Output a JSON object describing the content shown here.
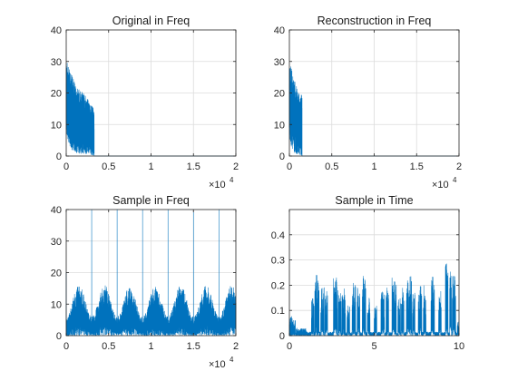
{
  "figure": {
    "background": "#ffffff",
    "line_color": "#0072BD"
  },
  "chart_data": [
    {
      "type": "line",
      "title": "Original in Freq",
      "xlabel": "",
      "ylabel": "",
      "xlim": [
        0,
        20000
      ],
      "ylim": [
        0,
        40
      ],
      "xticks": [
        0,
        5000,
        10000,
        15000,
        20000
      ],
      "xtick_labels": [
        "0",
        "0.5",
        "1",
        "1.5",
        "2"
      ],
      "yticks": [
        0,
        10,
        20,
        30,
        40
      ],
      "ytick_labels": [
        "0",
        "10",
        "20",
        "30",
        "40"
      ],
      "x_exponent": {
        "base": "×10",
        "power": "4"
      },
      "grid": true,
      "signal": {
        "description": "dense spectrum magnitude occupying low frequencies, zero above cutoff",
        "x_end": 3300,
        "envelope_x": [
          0,
          200,
          600,
          1200,
          2000,
          2800,
          3300
        ],
        "envelope_max": [
          31,
          29,
          26,
          22,
          20,
          17,
          15
        ],
        "envelope_min": [
          8,
          5,
          2,
          1,
          0.5,
          0.3,
          0
        ],
        "points": 900,
        "seed": 11
      }
    },
    {
      "type": "line",
      "title": "Reconstruction in Freq",
      "xlabel": "",
      "ylabel": "",
      "xlim": [
        0,
        20000
      ],
      "ylim": [
        0,
        40
      ],
      "xticks": [
        0,
        5000,
        10000,
        15000,
        20000
      ],
      "xtick_labels": [
        "0",
        "0.5",
        "1",
        "1.5",
        "2"
      ],
      "yticks": [
        0,
        10,
        20,
        30,
        40
      ],
      "ytick_labels": [
        "0",
        "10",
        "20",
        "30",
        "40"
      ],
      "x_exponent": {
        "base": "×10",
        "power": "4"
      },
      "grid": true,
      "signal": {
        "description": "dense spectrum magnitude limited to lower band",
        "x_end": 1500,
        "envelope_x": [
          0,
          200,
          600,
          1000,
          1500
        ],
        "envelope_max": [
          31,
          28,
          24,
          21,
          20
        ],
        "envelope_min": [
          6,
          3,
          1,
          0.5,
          0
        ],
        "points": 420,
        "seed": 23
      }
    },
    {
      "type": "line",
      "title": "Sample in Freq",
      "xlabel": "",
      "ylabel": "",
      "xlim": [
        0,
        20000
      ],
      "ylim": [
        0,
        40
      ],
      "xticks": [
        0,
        5000,
        10000,
        15000,
        20000
      ],
      "xtick_labels": [
        "0",
        "0.5",
        "1",
        "1.5",
        "2"
      ],
      "yticks": [
        0,
        10,
        20,
        30,
        40
      ],
      "ytick_labels": [
        "0",
        "10",
        "20",
        "30",
        "40"
      ],
      "x_exponent": {
        "base": "×10",
        "power": "4"
      },
      "grid": true,
      "signal": {
        "description": "periodic spectral images with spikes at multiples of sampling rate",
        "period": 3000,
        "spike_x": [
          3000,
          6000,
          9000,
          12000,
          15000,
          18000
        ],
        "spike_height": 40,
        "hump_peak": 16,
        "hump_base": 6,
        "points": 1800,
        "seed": 37
      }
    },
    {
      "type": "line",
      "title": "Sample in Time",
      "xlabel": "",
      "ylabel": "",
      "xlim": [
        0,
        10
      ],
      "ylim": [
        0,
        0.5
      ],
      "xticks": [
        0,
        5,
        10
      ],
      "xtick_labels": [
        "0",
        "5",
        "10"
      ],
      "yticks": [
        0,
        0.1,
        0.2,
        0.3,
        0.4
      ],
      "ytick_labels": [
        "0",
        "0.1",
        "0.2",
        "0.3",
        "0.4"
      ],
      "grid": true,
      "signal": {
        "description": "bursty sampled audio amplitude over time",
        "bursts": [
          [
            0.0,
            0.35,
            0.08
          ],
          [
            0.4,
            1.0,
            0.03
          ],
          [
            1.3,
            1.45,
            0.15
          ],
          [
            1.5,
            1.75,
            0.24
          ],
          [
            1.85,
            2.05,
            0.21
          ],
          [
            2.1,
            2.25,
            0.2
          ],
          [
            2.6,
            2.85,
            0.23
          ],
          [
            2.9,
            3.05,
            0.18
          ],
          [
            3.1,
            3.3,
            0.19
          ],
          [
            3.4,
            3.55,
            0.13
          ],
          [
            3.7,
            3.9,
            0.22
          ],
          [
            4.0,
            4.15,
            0.2
          ],
          [
            4.3,
            4.5,
            0.24
          ],
          [
            4.6,
            4.75,
            0.15
          ],
          [
            5.0,
            5.15,
            0.12
          ],
          [
            5.4,
            5.6,
            0.18
          ],
          [
            5.7,
            5.85,
            0.19
          ],
          [
            6.05,
            6.3,
            0.24
          ],
          [
            6.4,
            6.55,
            0.17
          ],
          [
            6.6,
            6.75,
            0.19
          ],
          [
            6.9,
            7.2,
            0.24
          ],
          [
            7.25,
            7.4,
            0.17
          ],
          [
            7.6,
            7.8,
            0.2
          ],
          [
            7.9,
            8.05,
            0.2
          ],
          [
            8.35,
            8.55,
            0.24
          ],
          [
            8.8,
            8.95,
            0.19
          ],
          [
            9.2,
            9.35,
            0.29
          ],
          [
            9.45,
            9.55,
            0.28
          ],
          [
            9.6,
            9.8,
            0.24
          ],
          [
            9.9,
            10.0,
            0.06
          ]
        ],
        "base_level": 0.015,
        "points": 1600,
        "seed": 53
      }
    }
  ]
}
